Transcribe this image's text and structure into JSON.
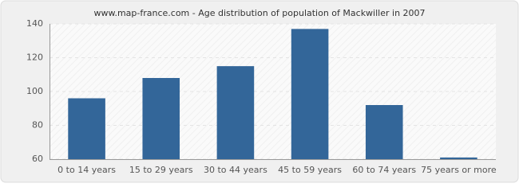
{
  "chart_data": {
    "type": "bar",
    "title": "www.map-france.com - Age distribution of population of Mackwiller in 2007",
    "categories": [
      "0 to 14 years",
      "15 to 29 years",
      "30 to 44 years",
      "45 to 59 years",
      "60 to 74 years",
      "75 years or more"
    ],
    "values": [
      96,
      108,
      115,
      137,
      92,
      61
    ],
    "color": "#336699",
    "ylim": [
      60,
      140
    ],
    "yticks": [
      60,
      80,
      100,
      120,
      140
    ],
    "grid": true
  }
}
